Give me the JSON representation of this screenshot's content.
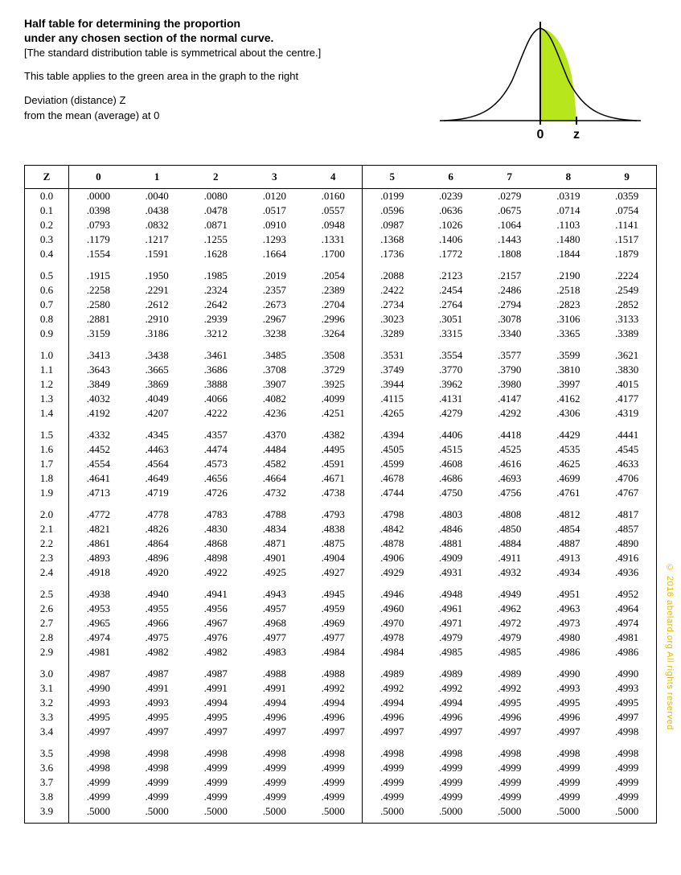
{
  "header": {
    "title_line1": "Half table for determining the proportion",
    "title_line2": "under any chosen section of the normal curve.",
    "subtitle": "[The standard distribution table is symmetrical about the centre.]",
    "apply_note": "This table applies to the green area in the graph to the right",
    "deviation_line1": "Deviation (distance) Z",
    "deviation_line2": "from the mean (average) at 0",
    "axis_zero": "0",
    "axis_z": "z"
  },
  "curve": {
    "stroke": "#000000",
    "fill": "#b6e61b",
    "axis_color": "#000000"
  },
  "table": {
    "head_z": "Z",
    "cols": [
      "0",
      "1",
      "2",
      "3",
      "4",
      "5",
      "6",
      "7",
      "8",
      "9"
    ],
    "groups": [
      [
        {
          "z": "0.0",
          "v": [
            ".0000",
            ".0040",
            ".0080",
            ".0120",
            ".0160",
            ".0199",
            ".0239",
            ".0279",
            ".0319",
            ".0359"
          ]
        },
        {
          "z": "0.1",
          "v": [
            ".0398",
            ".0438",
            ".0478",
            ".0517",
            ".0557",
            ".0596",
            ".0636",
            ".0675",
            ".0714",
            ".0754"
          ]
        },
        {
          "z": "0.2",
          "v": [
            ".0793",
            ".0832",
            ".0871",
            ".0910",
            ".0948",
            ".0987",
            ".1026",
            ".1064",
            ".1103",
            ".1141"
          ]
        },
        {
          "z": "0.3",
          "v": [
            ".1179",
            ".1217",
            ".1255",
            ".1293",
            ".1331",
            ".1368",
            ".1406",
            ".1443",
            ".1480",
            ".1517"
          ]
        },
        {
          "z": "0.4",
          "v": [
            ".1554",
            ".1591",
            ".1628",
            ".1664",
            ".1700",
            ".1736",
            ".1772",
            ".1808",
            ".1844",
            ".1879"
          ]
        }
      ],
      [
        {
          "z": "0.5",
          "v": [
            ".1915",
            ".1950",
            ".1985",
            ".2019",
            ".2054",
            ".2088",
            ".2123",
            ".2157",
            ".2190",
            ".2224"
          ]
        },
        {
          "z": "0.6",
          "v": [
            ".2258",
            ".2291",
            ".2324",
            ".2357",
            ".2389",
            ".2422",
            ".2454",
            ".2486",
            ".2518",
            ".2549"
          ]
        },
        {
          "z": "0.7",
          "v": [
            ".2580",
            ".2612",
            ".2642",
            ".2673",
            ".2704",
            ".2734",
            ".2764",
            ".2794",
            ".2823",
            ".2852"
          ]
        },
        {
          "z": "0.8",
          "v": [
            ".2881",
            ".2910",
            ".2939",
            ".2967",
            ".2996",
            ".3023",
            ".3051",
            ".3078",
            ".3106",
            ".3133"
          ]
        },
        {
          "z": "0.9",
          "v": [
            ".3159",
            ".3186",
            ".3212",
            ".3238",
            ".3264",
            ".3289",
            ".3315",
            ".3340",
            ".3365",
            ".3389"
          ]
        }
      ],
      [
        {
          "z": "1.0",
          "v": [
            ".3413",
            ".3438",
            ".3461",
            ".3485",
            ".3508",
            ".3531",
            ".3554",
            ".3577",
            ".3599",
            ".3621"
          ]
        },
        {
          "z": "1.1",
          "v": [
            ".3643",
            ".3665",
            ".3686",
            ".3708",
            ".3729",
            ".3749",
            ".3770",
            ".3790",
            ".3810",
            ".3830"
          ]
        },
        {
          "z": "1.2",
          "v": [
            ".3849",
            ".3869",
            ".3888",
            ".3907",
            ".3925",
            ".3944",
            ".3962",
            ".3980",
            ".3997",
            ".4015"
          ]
        },
        {
          "z": "1.3",
          "v": [
            ".4032",
            ".4049",
            ".4066",
            ".4082",
            ".4099",
            ".4115",
            ".4131",
            ".4147",
            ".4162",
            ".4177"
          ]
        },
        {
          "z": "1.4",
          "v": [
            ".4192",
            ".4207",
            ".4222",
            ".4236",
            ".4251",
            ".4265",
            ".4279",
            ".4292",
            ".4306",
            ".4319"
          ]
        }
      ],
      [
        {
          "z": "1.5",
          "v": [
            ".4332",
            ".4345",
            ".4357",
            ".4370",
            ".4382",
            ".4394",
            ".4406",
            ".4418",
            ".4429",
            ".4441"
          ]
        },
        {
          "z": "1.6",
          "v": [
            ".4452",
            ".4463",
            ".4474",
            ".4484",
            ".4495",
            ".4505",
            ".4515",
            ".4525",
            ".4535",
            ".4545"
          ]
        },
        {
          "z": "1.7",
          "v": [
            ".4554",
            ".4564",
            ".4573",
            ".4582",
            ".4591",
            ".4599",
            ".4608",
            ".4616",
            ".4625",
            ".4633"
          ]
        },
        {
          "z": "1.8",
          "v": [
            ".4641",
            ".4649",
            ".4656",
            ".4664",
            ".4671",
            ".4678",
            ".4686",
            ".4693",
            ".4699",
            ".4706"
          ]
        },
        {
          "z": "1.9",
          "v": [
            ".4713",
            ".4719",
            ".4726",
            ".4732",
            ".4738",
            ".4744",
            ".4750",
            ".4756",
            ".4761",
            ".4767"
          ]
        }
      ],
      [
        {
          "z": "2.0",
          "v": [
            ".4772",
            ".4778",
            ".4783",
            ".4788",
            ".4793",
            ".4798",
            ".4803",
            ".4808",
            ".4812",
            ".4817"
          ]
        },
        {
          "z": "2.1",
          "v": [
            ".4821",
            ".4826",
            ".4830",
            ".4834",
            ".4838",
            ".4842",
            ".4846",
            ".4850",
            ".4854",
            ".4857"
          ]
        },
        {
          "z": "2.2",
          "v": [
            ".4861",
            ".4864",
            ".4868",
            ".4871",
            ".4875",
            ".4878",
            ".4881",
            ".4884",
            ".4887",
            ".4890"
          ]
        },
        {
          "z": "2.3",
          "v": [
            ".4893",
            ".4896",
            ".4898",
            ".4901",
            ".4904",
            ".4906",
            ".4909",
            ".4911",
            ".4913",
            ".4916"
          ]
        },
        {
          "z": "2.4",
          "v": [
            ".4918",
            ".4920",
            ".4922",
            ".4925",
            ".4927",
            ".4929",
            ".4931",
            ".4932",
            ".4934",
            ".4936"
          ]
        }
      ],
      [
        {
          "z": "2.5",
          "v": [
            ".4938",
            ".4940",
            ".4941",
            ".4943",
            ".4945",
            ".4946",
            ".4948",
            ".4949",
            ".4951",
            ".4952"
          ]
        },
        {
          "z": "2.6",
          "v": [
            ".4953",
            ".4955",
            ".4956",
            ".4957",
            ".4959",
            ".4960",
            ".4961",
            ".4962",
            ".4963",
            ".4964"
          ]
        },
        {
          "z": "2.7",
          "v": [
            ".4965",
            ".4966",
            ".4967",
            ".4968",
            ".4969",
            ".4970",
            ".4971",
            ".4972",
            ".4973",
            ".4974"
          ]
        },
        {
          "z": "2.8",
          "v": [
            ".4974",
            ".4975",
            ".4976",
            ".4977",
            ".4977",
            ".4978",
            ".4979",
            ".4979",
            ".4980",
            ".4981"
          ]
        },
        {
          "z": "2.9",
          "v": [
            ".4981",
            ".4982",
            ".4982",
            ".4983",
            ".4984",
            ".4984",
            ".4985",
            ".4985",
            ".4986",
            ".4986"
          ]
        }
      ],
      [
        {
          "z": "3.0",
          "v": [
            ".4987",
            ".4987",
            ".4987",
            ".4988",
            ".4988",
            ".4989",
            ".4989",
            ".4989",
            ".4990",
            ".4990"
          ]
        },
        {
          "z": "3.1",
          "v": [
            ".4990",
            ".4991",
            ".4991",
            ".4991",
            ".4992",
            ".4992",
            ".4992",
            ".4992",
            ".4993",
            ".4993"
          ]
        },
        {
          "z": "3.2",
          "v": [
            ".4993",
            ".4993",
            ".4994",
            ".4994",
            ".4994",
            ".4994",
            ".4994",
            ".4995",
            ".4995",
            ".4995"
          ]
        },
        {
          "z": "3.3",
          "v": [
            ".4995",
            ".4995",
            ".4995",
            ".4996",
            ".4996",
            ".4996",
            ".4996",
            ".4996",
            ".4996",
            ".4997"
          ]
        },
        {
          "z": "3.4",
          "v": [
            ".4997",
            ".4997",
            ".4997",
            ".4997",
            ".4997",
            ".4997",
            ".4997",
            ".4997",
            ".4997",
            ".4998"
          ]
        }
      ],
      [
        {
          "z": "3.5",
          "v": [
            ".4998",
            ".4998",
            ".4998",
            ".4998",
            ".4998",
            ".4998",
            ".4998",
            ".4998",
            ".4998",
            ".4998"
          ]
        },
        {
          "z": "3.6",
          "v": [
            ".4998",
            ".4998",
            ".4999",
            ".4999",
            ".4999",
            ".4999",
            ".4999",
            ".4999",
            ".4999",
            ".4999"
          ]
        },
        {
          "z": "3.7",
          "v": [
            ".4999",
            ".4999",
            ".4999",
            ".4999",
            ".4999",
            ".4999",
            ".4999",
            ".4999",
            ".4999",
            ".4999"
          ]
        },
        {
          "z": "3.8",
          "v": [
            ".4999",
            ".4999",
            ".4999",
            ".4999",
            ".4999",
            ".4999",
            ".4999",
            ".4999",
            ".4999",
            ".4999"
          ]
        },
        {
          "z": "3.9",
          "v": [
            ".5000",
            ".5000",
            ".5000",
            ".5000",
            ".5000",
            ".5000",
            ".5000",
            ".5000",
            ".5000",
            ".5000"
          ]
        }
      ]
    ]
  },
  "copyright": "© 2016 abelard.org All rights reserved"
}
